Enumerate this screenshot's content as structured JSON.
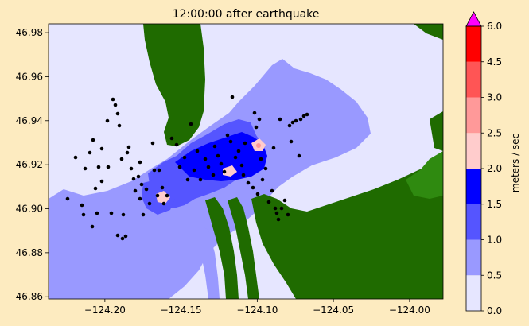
{
  "chart_data": {
    "type": "heatmap",
    "title": "12:00:00 after earthquake",
    "xlabel": "",
    "ylabel": "",
    "xlim": [
      -124.237,
      -123.978
    ],
    "ylim": [
      46.859,
      46.984
    ],
    "x_ticks": [
      {
        "value": -124.2,
        "label": "−124.20"
      },
      {
        "value": -124.15,
        "label": "−124.15"
      },
      {
        "value": -124.1,
        "label": "−124.10"
      },
      {
        "value": -124.05,
        "label": "−124.05"
      },
      {
        "value": -124.0,
        "label": "−124.00"
      }
    ],
    "y_ticks": [
      {
        "value": 46.86,
        "label": "46.86"
      },
      {
        "value": 46.88,
        "label": "46.88"
      },
      {
        "value": 46.9,
        "label": "46.90"
      },
      {
        "value": 46.92,
        "label": "46.92"
      },
      {
        "value": 46.94,
        "label": "46.94"
      },
      {
        "value": 46.96,
        "label": "46.96"
      },
      {
        "value": 46.98,
        "label": "46.98"
      }
    ],
    "colorbar": {
      "label": "meters / sec",
      "levels": [
        0.0,
        0.5,
        1.0,
        1.5,
        2.0,
        2.5,
        3.0,
        4.5,
        6.0
      ],
      "level_labels": [
        "0.0",
        "0.5",
        "1.0",
        "1.5",
        "2.0",
        "2.5",
        "3.0",
        "4.5",
        "6.0"
      ],
      "colors": [
        "#e6e6ff",
        "#9999ff",
        "#5555ff",
        "#0000ff",
        "#ffcccc",
        "#ff9999",
        "#ff5555",
        "#ff0000"
      ],
      "extend_color": "#ff00ff"
    },
    "land_color": "#1f6b00",
    "water_base_color": "#e6e6ff"
  }
}
